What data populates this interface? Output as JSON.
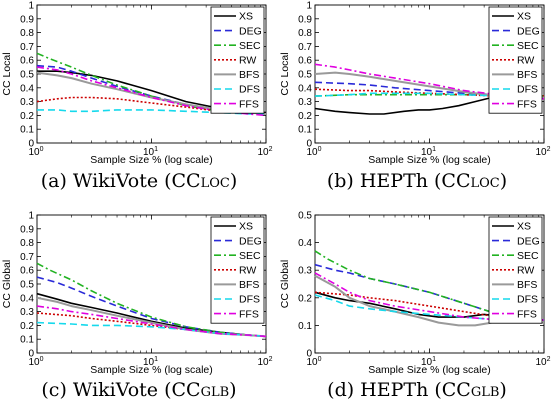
{
  "figure": {
    "style": {
      "series_colors": {
        "XS": "#000000",
        "DEG": "#2a2ad8",
        "SEC": "#22b222",
        "RW": "#cc0000",
        "BFS": "#9a9a9a",
        "DFS": "#16d9ec",
        "FFS": "#e000e0"
      },
      "series_dash": {
        "XS": "solid",
        "DEG": "dashed",
        "SEC": "dash-dot",
        "RW": "dotted",
        "BFS": "solid",
        "DFS": "dashed",
        "FFS": "dash-dot"
      }
    }
  },
  "chart_data": [
    {
      "type": "line",
      "caption": "(a) WikiVote (CCLOC)",
      "caption_parts": [
        "(a) WikiVote (CC",
        "loc",
        ")"
      ],
      "xlabel": "Sample Size % (log scale)",
      "ylabel": "CC Local",
      "xscale": "log",
      "xlim": [
        1,
        100
      ],
      "ylim": [
        0,
        1
      ],
      "xticks": [
        1,
        10,
        100
      ],
      "xtick_labels": [
        [
          "10",
          "0"
        ],
        [
          "10",
          "1"
        ],
        [
          "10",
          "2"
        ]
      ],
      "yticks": [
        0,
        0.1,
        0.2,
        0.3,
        0.4,
        0.5,
        0.6,
        0.7,
        0.8,
        0.9,
        1
      ],
      "ytick_labels": [
        "0",
        "0.1",
        "0.2",
        "0.3",
        "0.4",
        "0.5",
        "0.6",
        "0.7",
        "0.8",
        "0.9",
        "1"
      ],
      "legend_position": "top-right",
      "grid": false,
      "series": [
        {
          "name": "XS",
          "x": [
            1,
            1.5,
            2,
            3,
            5,
            10,
            20,
            40,
            70,
            100
          ],
          "y": [
            0.52,
            0.52,
            0.51,
            0.49,
            0.45,
            0.38,
            0.3,
            0.25,
            0.23,
            0.22
          ]
        },
        {
          "name": "DEG",
          "x": [
            1,
            1.5,
            2,
            3,
            5,
            10,
            20,
            40,
            70,
            100
          ],
          "y": [
            0.56,
            0.55,
            0.52,
            0.47,
            0.41,
            0.34,
            0.28,
            0.24,
            0.22,
            0.21
          ]
        },
        {
          "name": "SEC",
          "x": [
            1,
            1.3,
            2,
            3,
            5,
            10,
            20,
            40,
            70,
            100
          ],
          "y": [
            0.65,
            0.61,
            0.55,
            0.49,
            0.42,
            0.34,
            0.27,
            0.23,
            0.22,
            0.21
          ]
        },
        {
          "name": "RW",
          "x": [
            1,
            1.5,
            2,
            3,
            5,
            10,
            20,
            40,
            70,
            100
          ],
          "y": [
            0.3,
            0.32,
            0.33,
            0.33,
            0.32,
            0.29,
            0.26,
            0.23,
            0.22,
            0.21
          ]
        },
        {
          "name": "BFS",
          "x": [
            1,
            1.5,
            2,
            3,
            5,
            10,
            20,
            40,
            70,
            100
          ],
          "y": [
            0.51,
            0.49,
            0.47,
            0.43,
            0.39,
            0.33,
            0.28,
            0.24,
            0.22,
            0.21
          ]
        },
        {
          "name": "DFS",
          "x": [
            1,
            1.5,
            2,
            3,
            5,
            10,
            20,
            40,
            70,
            100
          ],
          "y": [
            0.24,
            0.24,
            0.23,
            0.23,
            0.24,
            0.24,
            0.23,
            0.22,
            0.21,
            0.21
          ]
        },
        {
          "name": "FFS",
          "x": [
            1,
            1.5,
            2,
            3,
            5,
            10,
            20,
            40,
            70,
            100
          ],
          "y": [
            0.55,
            0.53,
            0.5,
            0.45,
            0.4,
            0.33,
            0.27,
            0.23,
            0.21,
            0.2
          ]
        }
      ]
    },
    {
      "type": "line",
      "caption": "(b) HEPTh (CCLOC)",
      "caption_parts": [
        "(b) HEPTh (CC",
        "loc",
        ")"
      ],
      "xlabel": "Sample Size % (log scale)",
      "ylabel": "CC Local",
      "xscale": "log",
      "xlim": [
        1,
        100
      ],
      "ylim": [
        0,
        1
      ],
      "xticks": [
        1,
        10,
        100
      ],
      "xtick_labels": [
        [
          "10",
          "0"
        ],
        [
          "10",
          "1"
        ],
        [
          "10",
          "2"
        ]
      ],
      "yticks": [
        0,
        0.1,
        0.2,
        0.3,
        0.4,
        0.5,
        0.6,
        0.7,
        0.8,
        0.9,
        1
      ],
      "ytick_labels": [
        "0",
        "0.1",
        "0.2",
        "0.3",
        "0.4",
        "0.5",
        "0.6",
        "0.7",
        "0.8",
        "0.9",
        "1"
      ],
      "legend_position": "top-right",
      "grid": false,
      "series": [
        {
          "name": "XS",
          "x": [
            1,
            1.5,
            2,
            3,
            4,
            6,
            8,
            10,
            13,
            18,
            25,
            35,
            50,
            70,
            100
          ],
          "y": [
            0.25,
            0.23,
            0.22,
            0.21,
            0.21,
            0.23,
            0.24,
            0.24,
            0.25,
            0.27,
            0.3,
            0.33,
            0.34,
            0.34,
            0.34
          ]
        },
        {
          "name": "DEG",
          "x": [
            1,
            2,
            3,
            5,
            10,
            20,
            40,
            70,
            100
          ],
          "y": [
            0.44,
            0.43,
            0.42,
            0.4,
            0.38,
            0.36,
            0.35,
            0.34,
            0.34
          ]
        },
        {
          "name": "SEC",
          "x": [
            1,
            2,
            3,
            5,
            10,
            20,
            40,
            70,
            100
          ],
          "y": [
            0.34,
            0.35,
            0.35,
            0.35,
            0.35,
            0.35,
            0.35,
            0.34,
            0.34
          ]
        },
        {
          "name": "RW",
          "x": [
            1,
            2,
            3,
            5,
            10,
            20,
            40,
            70,
            100
          ],
          "y": [
            0.39,
            0.38,
            0.38,
            0.37,
            0.36,
            0.35,
            0.34,
            0.34,
            0.34
          ]
        },
        {
          "name": "BFS",
          "x": [
            1,
            1.5,
            2,
            3,
            5,
            10,
            20,
            40,
            70,
            100
          ],
          "y": [
            0.5,
            0.51,
            0.5,
            0.48,
            0.45,
            0.41,
            0.37,
            0.34,
            0.33,
            0.33
          ]
        },
        {
          "name": "DFS",
          "x": [
            1,
            2,
            3,
            5,
            10,
            20,
            40,
            70,
            100
          ],
          "y": [
            0.34,
            0.35,
            0.36,
            0.36,
            0.36,
            0.35,
            0.34,
            0.34,
            0.34
          ]
        },
        {
          "name": "FFS",
          "x": [
            1,
            1.5,
            2,
            3,
            5,
            10,
            20,
            40,
            70,
            100
          ],
          "y": [
            0.57,
            0.55,
            0.53,
            0.5,
            0.47,
            0.43,
            0.38,
            0.35,
            0.33,
            0.32
          ]
        }
      ]
    },
    {
      "type": "line",
      "caption": "(c) WikiVote (CCGLB)",
      "caption_parts": [
        "(c) WikiVote (CC",
        "glb",
        ")"
      ],
      "xlabel": "Sample Size % (log scale)",
      "ylabel": "CC Global",
      "xscale": "log",
      "xlim": [
        1,
        100
      ],
      "ylim": [
        0,
        1
      ],
      "xticks": [
        1,
        10,
        100
      ],
      "xtick_labels": [
        [
          "10",
          "0"
        ],
        [
          "10",
          "1"
        ],
        [
          "10",
          "2"
        ]
      ],
      "yticks": [
        0,
        0.1,
        0.2,
        0.3,
        0.4,
        0.5,
        0.6,
        0.7,
        0.8,
        0.9,
        1
      ],
      "ytick_labels": [
        "0",
        "0.1",
        "0.2",
        "0.3",
        "0.4",
        "0.5",
        "0.6",
        "0.7",
        "0.8",
        "0.9",
        "1"
      ],
      "legend_position": "top-right",
      "grid": false,
      "series": [
        {
          "name": "XS",
          "x": [
            1,
            1.5,
            2,
            3,
            5,
            10,
            20,
            40,
            70,
            100
          ],
          "y": [
            0.43,
            0.39,
            0.36,
            0.33,
            0.29,
            0.23,
            0.18,
            0.15,
            0.13,
            0.12
          ]
        },
        {
          "name": "DEG",
          "x": [
            1,
            1.5,
            2,
            3,
            5,
            10,
            20,
            40,
            70,
            100
          ],
          "y": [
            0.55,
            0.51,
            0.47,
            0.41,
            0.34,
            0.25,
            0.19,
            0.15,
            0.13,
            0.12
          ]
        },
        {
          "name": "SEC",
          "x": [
            1,
            1.3,
            2,
            3,
            5,
            10,
            20,
            40,
            70,
            100
          ],
          "y": [
            0.65,
            0.6,
            0.53,
            0.45,
            0.36,
            0.26,
            0.19,
            0.15,
            0.13,
            0.12
          ]
        },
        {
          "name": "RW",
          "x": [
            1,
            2,
            3,
            5,
            10,
            20,
            40,
            70,
            100
          ],
          "y": [
            0.29,
            0.27,
            0.25,
            0.23,
            0.2,
            0.17,
            0.14,
            0.13,
            0.12
          ]
        },
        {
          "name": "BFS",
          "x": [
            1,
            1.5,
            2,
            3,
            5,
            10,
            20,
            40,
            70,
            100
          ],
          "y": [
            0.4,
            0.37,
            0.34,
            0.31,
            0.27,
            0.22,
            0.17,
            0.14,
            0.13,
            0.12
          ]
        },
        {
          "name": "DFS",
          "x": [
            1,
            2,
            3,
            5,
            10,
            20,
            40,
            70,
            100
          ],
          "y": [
            0.22,
            0.21,
            0.2,
            0.2,
            0.19,
            0.17,
            0.14,
            0.13,
            0.12
          ]
        },
        {
          "name": "FFS",
          "x": [
            1,
            1.5,
            2,
            3,
            5,
            10,
            20,
            40,
            70,
            100
          ],
          "y": [
            0.34,
            0.32,
            0.3,
            0.28,
            0.25,
            0.21,
            0.17,
            0.14,
            0.13,
            0.12
          ]
        }
      ]
    },
    {
      "type": "line",
      "caption": "(d) HEPTh (CCGLB)",
      "caption_parts": [
        "(d) HEPTh (CC",
        "glb",
        ")"
      ],
      "xlabel": "Sample Size % (log scale)",
      "ylabel": "CC Global",
      "xscale": "log",
      "xlim": [
        1,
        100
      ],
      "ylim": [
        0,
        0.5
      ],
      "xticks": [
        1,
        10,
        100
      ],
      "xtick_labels": [
        [
          "10",
          "0"
        ],
        [
          "10",
          "1"
        ],
        [
          "10",
          "2"
        ]
      ],
      "yticks": [
        0,
        0.1,
        0.2,
        0.3,
        0.4,
        0.5
      ],
      "ytick_labels": [
        "0",
        "0.1",
        "0.2",
        "0.3",
        "0.4",
        "0.5"
      ],
      "legend_position": "top-right",
      "grid": false,
      "series": [
        {
          "name": "XS",
          "x": [
            1,
            1.5,
            2,
            3,
            5,
            8,
            12,
            20,
            30,
            50,
            70,
            100
          ],
          "y": [
            0.22,
            0.2,
            0.19,
            0.18,
            0.16,
            0.14,
            0.13,
            0.13,
            0.14,
            0.13,
            0.12,
            0.12
          ]
        },
        {
          "name": "DEG",
          "x": [
            1,
            1.5,
            2,
            3,
            5,
            10,
            20,
            40,
            70,
            100
          ],
          "y": [
            0.32,
            0.3,
            0.29,
            0.27,
            0.25,
            0.22,
            0.18,
            0.14,
            0.12,
            0.12
          ]
        },
        {
          "name": "SEC",
          "x": [
            1,
            1.3,
            2,
            3,
            5,
            10,
            20,
            40,
            70,
            100
          ],
          "y": [
            0.37,
            0.34,
            0.3,
            0.27,
            0.25,
            0.22,
            0.18,
            0.14,
            0.12,
            0.12
          ]
        },
        {
          "name": "RW",
          "x": [
            1,
            2,
            3,
            5,
            10,
            20,
            40,
            70,
            100
          ],
          "y": [
            0.22,
            0.21,
            0.2,
            0.19,
            0.17,
            0.15,
            0.13,
            0.12,
            0.12
          ]
        },
        {
          "name": "BFS",
          "x": [
            1,
            1.5,
            2,
            3,
            5,
            8,
            12,
            18,
            25,
            35,
            50,
            70,
            100
          ],
          "y": [
            0.28,
            0.24,
            0.2,
            0.17,
            0.15,
            0.13,
            0.11,
            0.1,
            0.1,
            0.11,
            0.11,
            0.11,
            0.11
          ]
        },
        {
          "name": "DFS",
          "x": [
            1,
            1.5,
            2,
            3,
            5,
            10,
            20,
            40,
            70,
            100
          ],
          "y": [
            0.21,
            0.19,
            0.17,
            0.16,
            0.15,
            0.14,
            0.13,
            0.12,
            0.12,
            0.12
          ]
        },
        {
          "name": "FFS",
          "x": [
            1,
            1.5,
            2,
            3,
            5,
            10,
            20,
            40,
            70,
            100
          ],
          "y": [
            0.29,
            0.25,
            0.22,
            0.19,
            0.17,
            0.15,
            0.13,
            0.12,
            0.12,
            0.12
          ]
        }
      ]
    }
  ]
}
